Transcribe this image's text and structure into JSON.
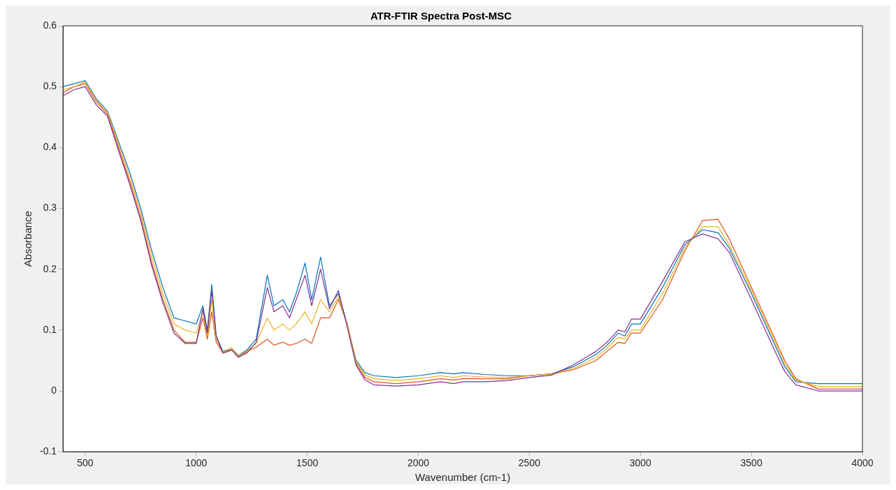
{
  "chart_data": {
    "type": "line",
    "title": "ATR-FTIR Spectra Post-MSC",
    "xlabel": "Wavenumber (cm-1)",
    "ylabel": "Absorbance",
    "x": [
      400,
      450,
      500,
      550,
      600,
      650,
      700,
      750,
      800,
      850,
      900,
      950,
      1000,
      1030,
      1050,
      1070,
      1090,
      1120,
      1160,
      1190,
      1230,
      1270,
      1320,
      1350,
      1390,
      1420,
      1450,
      1490,
      1520,
      1560,
      1600,
      1640,
      1680,
      1720,
      1760,
      1800,
      1900,
      2000,
      2100,
      2160,
      2200,
      2300,
      2400,
      2500,
      2600,
      2700,
      2800,
      2850,
      2900,
      2930,
      2960,
      3000,
      3100,
      3200,
      3280,
      3350,
      3400,
      3500,
      3600,
      3650,
      3700,
      3800,
      4000
    ],
    "series": [
      {
        "color": "#0072bd",
        "values": [
          0.5,
          0.505,
          0.51,
          0.48,
          0.46,
          0.41,
          0.36,
          0.3,
          0.23,
          0.17,
          0.12,
          0.115,
          0.11,
          0.14,
          0.1,
          0.175,
          0.09,
          0.065,
          0.07,
          0.058,
          0.068,
          0.085,
          0.19,
          0.14,
          0.15,
          0.13,
          0.16,
          0.21,
          0.15,
          0.22,
          0.14,
          0.16,
          0.11,
          0.05,
          0.03,
          0.025,
          0.022,
          0.025,
          0.03,
          0.028,
          0.03,
          0.027,
          0.025,
          0.025,
          0.028,
          0.04,
          0.06,
          0.075,
          0.095,
          0.09,
          0.11,
          0.11,
          0.17,
          0.24,
          0.265,
          0.26,
          0.235,
          0.16,
          0.08,
          0.04,
          0.015,
          0.012,
          0.012
        ]
      },
      {
        "color": "#d95319",
        "values": [
          0.49,
          0.5,
          0.505,
          0.475,
          0.455,
          0.4,
          0.345,
          0.285,
          0.21,
          0.15,
          0.1,
          0.08,
          0.08,
          0.12,
          0.085,
          0.13,
          0.08,
          0.063,
          0.068,
          0.056,
          0.065,
          0.072,
          0.085,
          0.075,
          0.08,
          0.075,
          0.078,
          0.085,
          0.078,
          0.12,
          0.12,
          0.15,
          0.11,
          0.045,
          0.022,
          0.015,
          0.012,
          0.015,
          0.02,
          0.018,
          0.02,
          0.02,
          0.02,
          0.025,
          0.028,
          0.035,
          0.05,
          0.065,
          0.08,
          0.078,
          0.095,
          0.095,
          0.15,
          0.23,
          0.28,
          0.282,
          0.25,
          0.17,
          0.09,
          0.05,
          0.02,
          0.003,
          0.003
        ]
      },
      {
        "color": "#edb120",
        "values": [
          0.495,
          0.5,
          0.508,
          0.478,
          0.458,
          0.405,
          0.352,
          0.293,
          0.22,
          0.16,
          0.11,
          0.1,
          0.095,
          0.13,
          0.09,
          0.15,
          0.085,
          0.064,
          0.07,
          0.057,
          0.066,
          0.078,
          0.12,
          0.1,
          0.11,
          0.1,
          0.11,
          0.13,
          0.11,
          0.15,
          0.13,
          0.155,
          0.11,
          0.048,
          0.026,
          0.02,
          0.017,
          0.02,
          0.025,
          0.022,
          0.025,
          0.023,
          0.022,
          0.025,
          0.028,
          0.037,
          0.055,
          0.07,
          0.088,
          0.085,
          0.1,
          0.1,
          0.16,
          0.235,
          0.27,
          0.27,
          0.24,
          0.165,
          0.085,
          0.045,
          0.018,
          0.007,
          0.007
        ]
      },
      {
        "color": "#7e2f8e",
        "values": [
          0.485,
          0.495,
          0.5,
          0.47,
          0.452,
          0.395,
          0.34,
          0.28,
          0.205,
          0.145,
          0.095,
          0.078,
          0.078,
          0.135,
          0.095,
          0.165,
          0.09,
          0.062,
          0.067,
          0.055,
          0.063,
          0.08,
          0.17,
          0.13,
          0.14,
          0.12,
          0.15,
          0.19,
          0.14,
          0.2,
          0.135,
          0.165,
          0.105,
          0.042,
          0.018,
          0.01,
          0.008,
          0.01,
          0.015,
          0.012,
          0.015,
          0.015,
          0.017,
          0.022,
          0.026,
          0.043,
          0.065,
          0.08,
          0.1,
          0.097,
          0.118,
          0.118,
          0.18,
          0.245,
          0.258,
          0.25,
          0.228,
          0.15,
          0.07,
          0.032,
          0.01,
          0,
          0
        ]
      }
    ],
    "xlim": [
      400,
      4000
    ],
    "xticks": [
      500,
      1000,
      1500,
      2000,
      2500,
      3000,
      3500,
      4000
    ],
    "ylim": [
      -0.1,
      0.6
    ],
    "yticks": [
      -0.1,
      0,
      0.1,
      0.2,
      0.3,
      0.4,
      0.5,
      0.6
    ],
    "grid": false,
    "legend": false,
    "marker": "none",
    "line_style": "solid"
  }
}
